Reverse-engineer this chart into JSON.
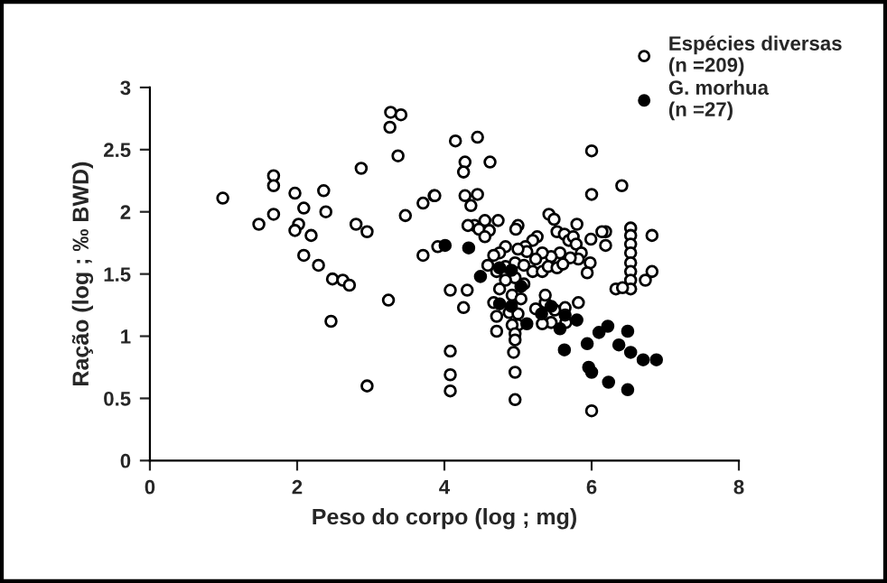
{
  "chart_data": {
    "type": "scatter",
    "xlabel": "Peso do corpo (log ; mg)",
    "ylabel": "Ração (log ; ‰ BWD)",
    "xlim": [
      0,
      8
    ],
    "ylim": [
      0,
      3
    ],
    "xticks": [
      0,
      2,
      4,
      6,
      8
    ],
    "yticks": [
      0,
      0.5,
      1,
      1.5,
      2,
      2.5,
      3
    ],
    "marker": "circle",
    "legend": "top right",
    "grid": false,
    "series": [
      {
        "name": "Espécies diversas\n(n =209)",
        "color": "#ffffff",
        "x": [
          0.99,
          1.48,
          1.68,
          1.68,
          1.68,
          1.97,
          2.09,
          2.02,
          1.97,
          2.19,
          2.09,
          2.36,
          2.39,
          2.29,
          2.48,
          2.62,
          2.71,
          2.46,
          2.8,
          2.95,
          2.95,
          2.87,
          3.24,
          3.27,
          3.41,
          3.26,
          3.37,
          3.47,
          3.71,
          3.86,
          3.71,
          3.91,
          4.15,
          4.45,
          4.28,
          4.26,
          4.62,
          4.28,
          4.36,
          4.45,
          3.87,
          4.08,
          4.31,
          4.26,
          4.08,
          4.08,
          4.08,
          4.94,
          4.96,
          4.96,
          6.0,
          6.0,
          6.0,
          6.41,
          5.99,
          6.19,
          6.19,
          6.53,
          6.53,
          6.53,
          6.53,
          6.53,
          6.53,
          6.53,
          6.53,
          6.82,
          6.82,
          6.73,
          6.33,
          6.42,
          6.14,
          4.73,
          4.55,
          4.41,
          4.32,
          4.47,
          4.61,
          4.55,
          5.0,
          4.97,
          5.26,
          5.2,
          5.1,
          5.42,
          5.49,
          5.8,
          5.53,
          5.63,
          5.69,
          5.75,
          5.79,
          5.86,
          5.98,
          5.94,
          5.82,
          5.71,
          5.57,
          5.45,
          5.33,
          5.24,
          5.12,
          5.0,
          4.83,
          4.75,
          4.67,
          4.59,
          4.71,
          4.83,
          4.96,
          5.08,
          5.2,
          5.33,
          5.41,
          5.53,
          5.61,
          4.96,
          5.08,
          4.83,
          4.75,
          4.92,
          5.04,
          4.67,
          4.71,
          4.88,
          5.0,
          5.24,
          5.37,
          5.37,
          5.5,
          5.64,
          5.82,
          5.45,
          5.33,
          5.0,
          4.92,
          4.96,
          4.71,
          4.96,
          5.65
        ],
        "values": [
          2.11,
          1.9,
          2.29,
          2.21,
          1.98,
          2.15,
          2.03,
          1.9,
          1.85,
          1.81,
          1.65,
          2.17,
          2.0,
          1.57,
          1.46,
          1.45,
          1.41,
          1.12,
          1.9,
          1.84,
          0.6,
          2.35,
          1.29,
          2.8,
          2.78,
          2.68,
          2.45,
          1.97,
          2.07,
          2.13,
          1.65,
          1.72,
          2.57,
          2.6,
          2.4,
          2.32,
          2.4,
          2.13,
          2.05,
          2.14,
          2.13,
          1.37,
          1.37,
          1.23,
          0.88,
          0.69,
          0.56,
          0.87,
          0.71,
          0.49,
          2.49,
          2.14,
          0.4,
          2.21,
          1.78,
          1.84,
          1.73,
          1.87,
          1.81,
          1.74,
          1.67,
          1.59,
          1.52,
          1.45,
          1.38,
          1.81,
          1.52,
          1.45,
          1.38,
          1.39,
          1.84,
          1.93,
          1.93,
          1.89,
          1.89,
          1.86,
          1.85,
          1.8,
          1.89,
          1.86,
          1.8,
          1.77,
          1.72,
          1.98,
          1.94,
          1.9,
          1.84,
          1.82,
          1.77,
          1.8,
          1.74,
          1.67,
          1.59,
          1.51,
          1.62,
          1.63,
          1.67,
          1.64,
          1.67,
          1.62,
          1.68,
          1.7,
          1.72,
          1.67,
          1.65,
          1.57,
          1.52,
          1.56,
          1.59,
          1.57,
          1.52,
          1.52,
          1.56,
          1.55,
          1.58,
          1.47,
          1.42,
          1.45,
          1.38,
          1.33,
          1.3,
          1.27,
          1.16,
          1.19,
          1.18,
          1.22,
          1.27,
          1.33,
          1.21,
          1.23,
          1.27,
          1.11,
          1.1,
          1.09,
          1.09,
          1.02,
          1.04,
          0.97,
          1.11
        ]
      },
      {
        "name": "G. morhua\n(n =27)",
        "color": "#000000",
        "x": [
          4.01,
          4.33,
          4.49,
          4.75,
          4.91,
          5.04,
          4.75,
          4.91,
          5.12,
          5.32,
          5.45,
          5.57,
          5.64,
          5.8,
          5.63,
          5.94,
          6.1,
          6.22,
          6.49,
          6.37,
          6.53,
          6.7,
          6.88,
          5.96,
          6.0,
          6.23,
          6.49
        ],
        "values": [
          1.73,
          1.71,
          1.48,
          1.55,
          1.53,
          1.4,
          1.26,
          1.24,
          1.1,
          1.18,
          1.24,
          1.06,
          1.17,
          1.13,
          0.89,
          0.94,
          1.03,
          1.08,
          1.04,
          0.93,
          0.87,
          0.81,
          0.81,
          0.75,
          0.71,
          0.63,
          0.57
        ]
      }
    ]
  }
}
